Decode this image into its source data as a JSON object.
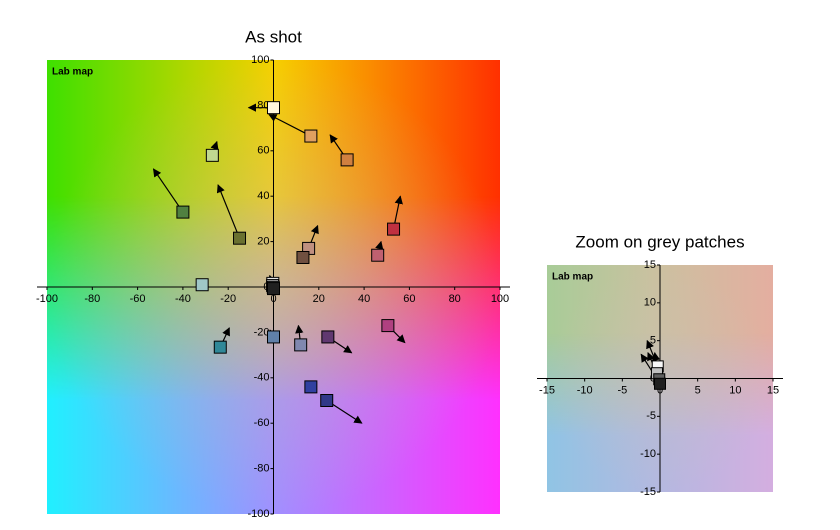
{
  "chart_data": [
    {
      "type": "scatter",
      "title": "As shot",
      "label": "Lab map",
      "xlim": [
        -100,
        100
      ],
      "ylim": [
        -100,
        100
      ],
      "xticks": [
        -100,
        -80,
        -60,
        -40,
        -20,
        0,
        20,
        40,
        60,
        80,
        100
      ],
      "yticks": [
        -100,
        -80,
        -60,
        -40,
        -20,
        0,
        20,
        40,
        60,
        80,
        100
      ],
      "x": [
        0,
        16.5,
        32.5,
        -27,
        -40,
        -15,
        53,
        46,
        15.5,
        13,
        -0.3,
        -0.4,
        -0.1,
        0,
        -31.5,
        -23.5,
        0,
        12,
        24,
        50.5,
        16.5,
        23.5
      ],
      "values": [
        79,
        66.5,
        56,
        58,
        33,
        21.5,
        25.5,
        14,
        17,
        13,
        1.6,
        0.7,
        -0.1,
        -0.7,
        1,
        -26.5,
        -22,
        -25.5,
        -22,
        -17,
        -44,
        -50
      ],
      "arrow_x": [
        -11,
        -2,
        25,
        -25,
        -53,
        -24.5,
        56,
        47.5,
        19.5,
        15.5,
        -1.7,
        -1.6,
        -0.7,
        -2.5,
        -33,
        -19.5,
        -1.5,
        11,
        34.5,
        58,
        17,
        39
      ],
      "arrow_y": [
        79,
        76,
        67,
        64,
        52,
        45,
        40,
        20,
        27,
        17,
        5,
        3.4,
        3.4,
        3.2,
        2,
        -18,
        -19,
        -17,
        -29,
        -24.5,
        -43,
        -60
      ],
      "colors": [
        "#fff6dc",
        "#e0a060",
        "#d08040",
        "#c0d890",
        "#508040",
        "#6a7030",
        "#c03040",
        "#c06070",
        "#c09080",
        "#705040",
        "#f8f8f8",
        "#c0c0c0",
        "#606060",
        "#202020",
        "#a0c8c8",
        "#308898",
        "#6080a8",
        "#8088b0",
        "#603870",
        "#b04080",
        "#3040a0",
        "#303888"
      ]
    },
    {
      "type": "scatter",
      "title": "Zoom on grey patches",
      "label": "Lab map",
      "xlim": [
        -15,
        15
      ],
      "ylim": [
        -15,
        15
      ],
      "xticks": [
        -15,
        -10,
        -5,
        0,
        5,
        10,
        15
      ],
      "yticks": [
        -15,
        -10,
        -5,
        0,
        5,
        10,
        15
      ],
      "x": [
        -0.3,
        -0.4,
        -0.1,
        0
      ],
      "values": [
        1.6,
        0.7,
        -0.1,
        -0.7
      ],
      "arrow_x": [
        -1.7,
        -1.6,
        -0.7,
        -2.5
      ],
      "arrow_y": [
        5,
        3.4,
        3.4,
        3.2
      ],
      "colors": [
        "#f8f8f8",
        "#c0c0c0",
        "#606060",
        "#202020"
      ]
    }
  ]
}
